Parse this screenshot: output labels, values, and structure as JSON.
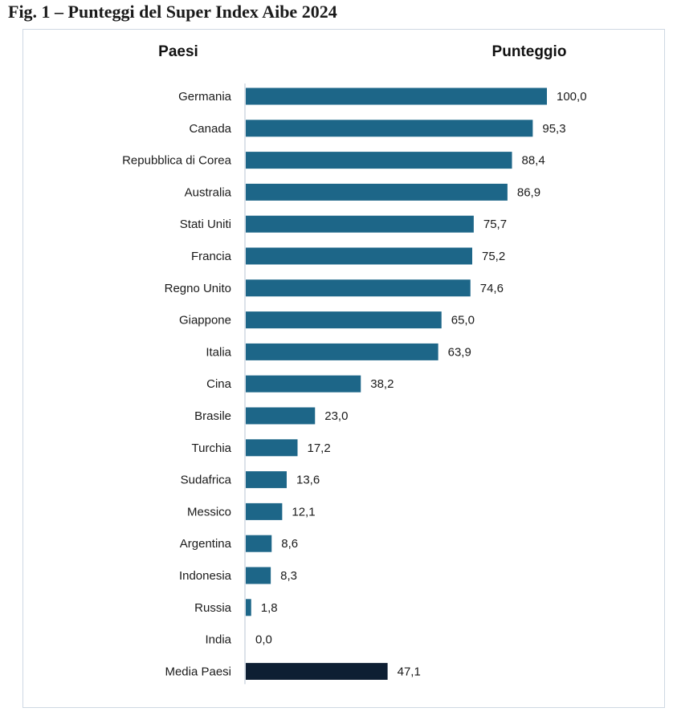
{
  "title": "Fig. 1 – Punteggi del Super Index Aibe 2024",
  "chart_data": {
    "type": "bar",
    "orientation": "horizontal",
    "category_header": "Paesi",
    "value_header": "Punteggio",
    "categories": [
      "Germania",
      "Canada",
      "Repubblica di Corea",
      "Australia",
      "Stati Uniti",
      "Francia",
      "Regno Unito",
      "Giappone",
      "Italia",
      "Cina",
      "Brasile",
      "Turchia",
      "Sudafrica",
      "Messico",
      "Argentina",
      "Indonesia",
      "Russia",
      "India",
      "Media Paesi"
    ],
    "values": [
      100.0,
      95.3,
      88.4,
      86.9,
      75.7,
      75.2,
      74.6,
      65.0,
      63.9,
      38.2,
      23.0,
      17.2,
      13.6,
      12.1,
      8.6,
      8.3,
      1.8,
      0.0,
      47.1
    ],
    "value_labels": [
      "100,0",
      "95,3",
      "88,4",
      "86,9",
      "75,7",
      "75,2",
      "74,6",
      "65,0",
      "63,9",
      "38,2",
      "23,0",
      "17,2",
      "13,6",
      "12,1",
      "8,6",
      "8,3",
      "1,8",
      "0,0",
      "47,1"
    ],
    "xlim": [
      0,
      100
    ],
    "grid": false,
    "legend": "none",
    "colors": {
      "bar": "#1d6688",
      "bar_highlight": "#0e1f33",
      "axis": "#b9c6d3"
    }
  }
}
